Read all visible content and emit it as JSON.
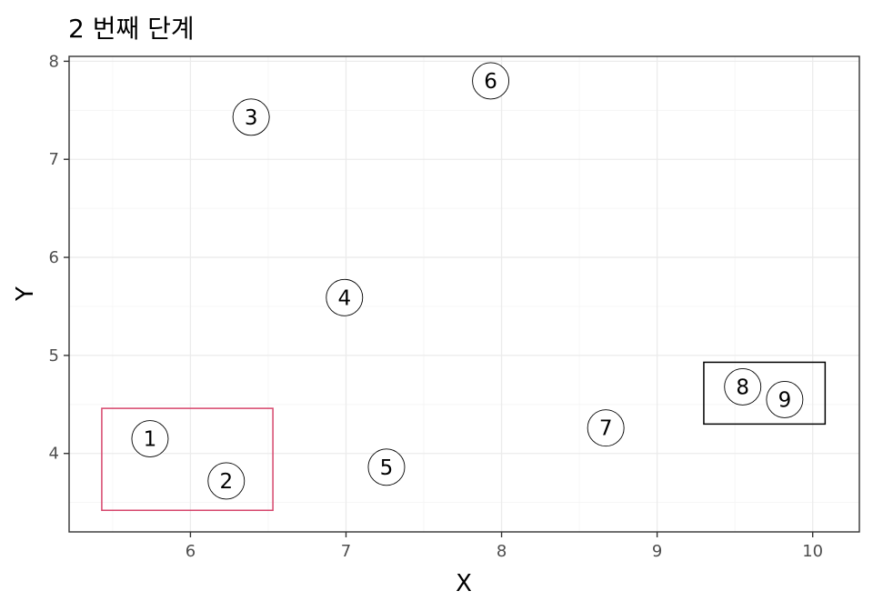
{
  "chart_data": {
    "type": "scatter",
    "title": "2 번째 단계",
    "xlabel": "X",
    "ylabel": "Y",
    "xlim": [
      5.22,
      10.3
    ],
    "ylim": [
      3.2,
      8.05
    ],
    "xticks": [
      6,
      7,
      8,
      9,
      10
    ],
    "yticks": [
      4,
      5,
      6,
      7,
      8
    ],
    "grid": true,
    "points": [
      {
        "label": "1",
        "x": 5.74,
        "y": 4.15
      },
      {
        "label": "2",
        "x": 6.23,
        "y": 3.72
      },
      {
        "label": "3",
        "x": 6.39,
        "y": 7.43
      },
      {
        "label": "4",
        "x": 6.99,
        "y": 5.59
      },
      {
        "label": "5",
        "x": 7.26,
        "y": 3.86
      },
      {
        "label": "6",
        "x": 7.93,
        "y": 7.8
      },
      {
        "label": "7",
        "x": 8.67,
        "y": 4.26
      },
      {
        "label": "8",
        "x": 9.55,
        "y": 4.68
      },
      {
        "label": "9",
        "x": 9.82,
        "y": 4.55
      }
    ],
    "boxes": [
      {
        "color": "#d6456b",
        "x0": 5.43,
        "x1": 6.53,
        "y0": 3.42,
        "y1": 4.46
      },
      {
        "color": "#000000",
        "x0": 9.3,
        "x1": 10.08,
        "y0": 4.3,
        "y1": 4.93
      }
    ]
  }
}
